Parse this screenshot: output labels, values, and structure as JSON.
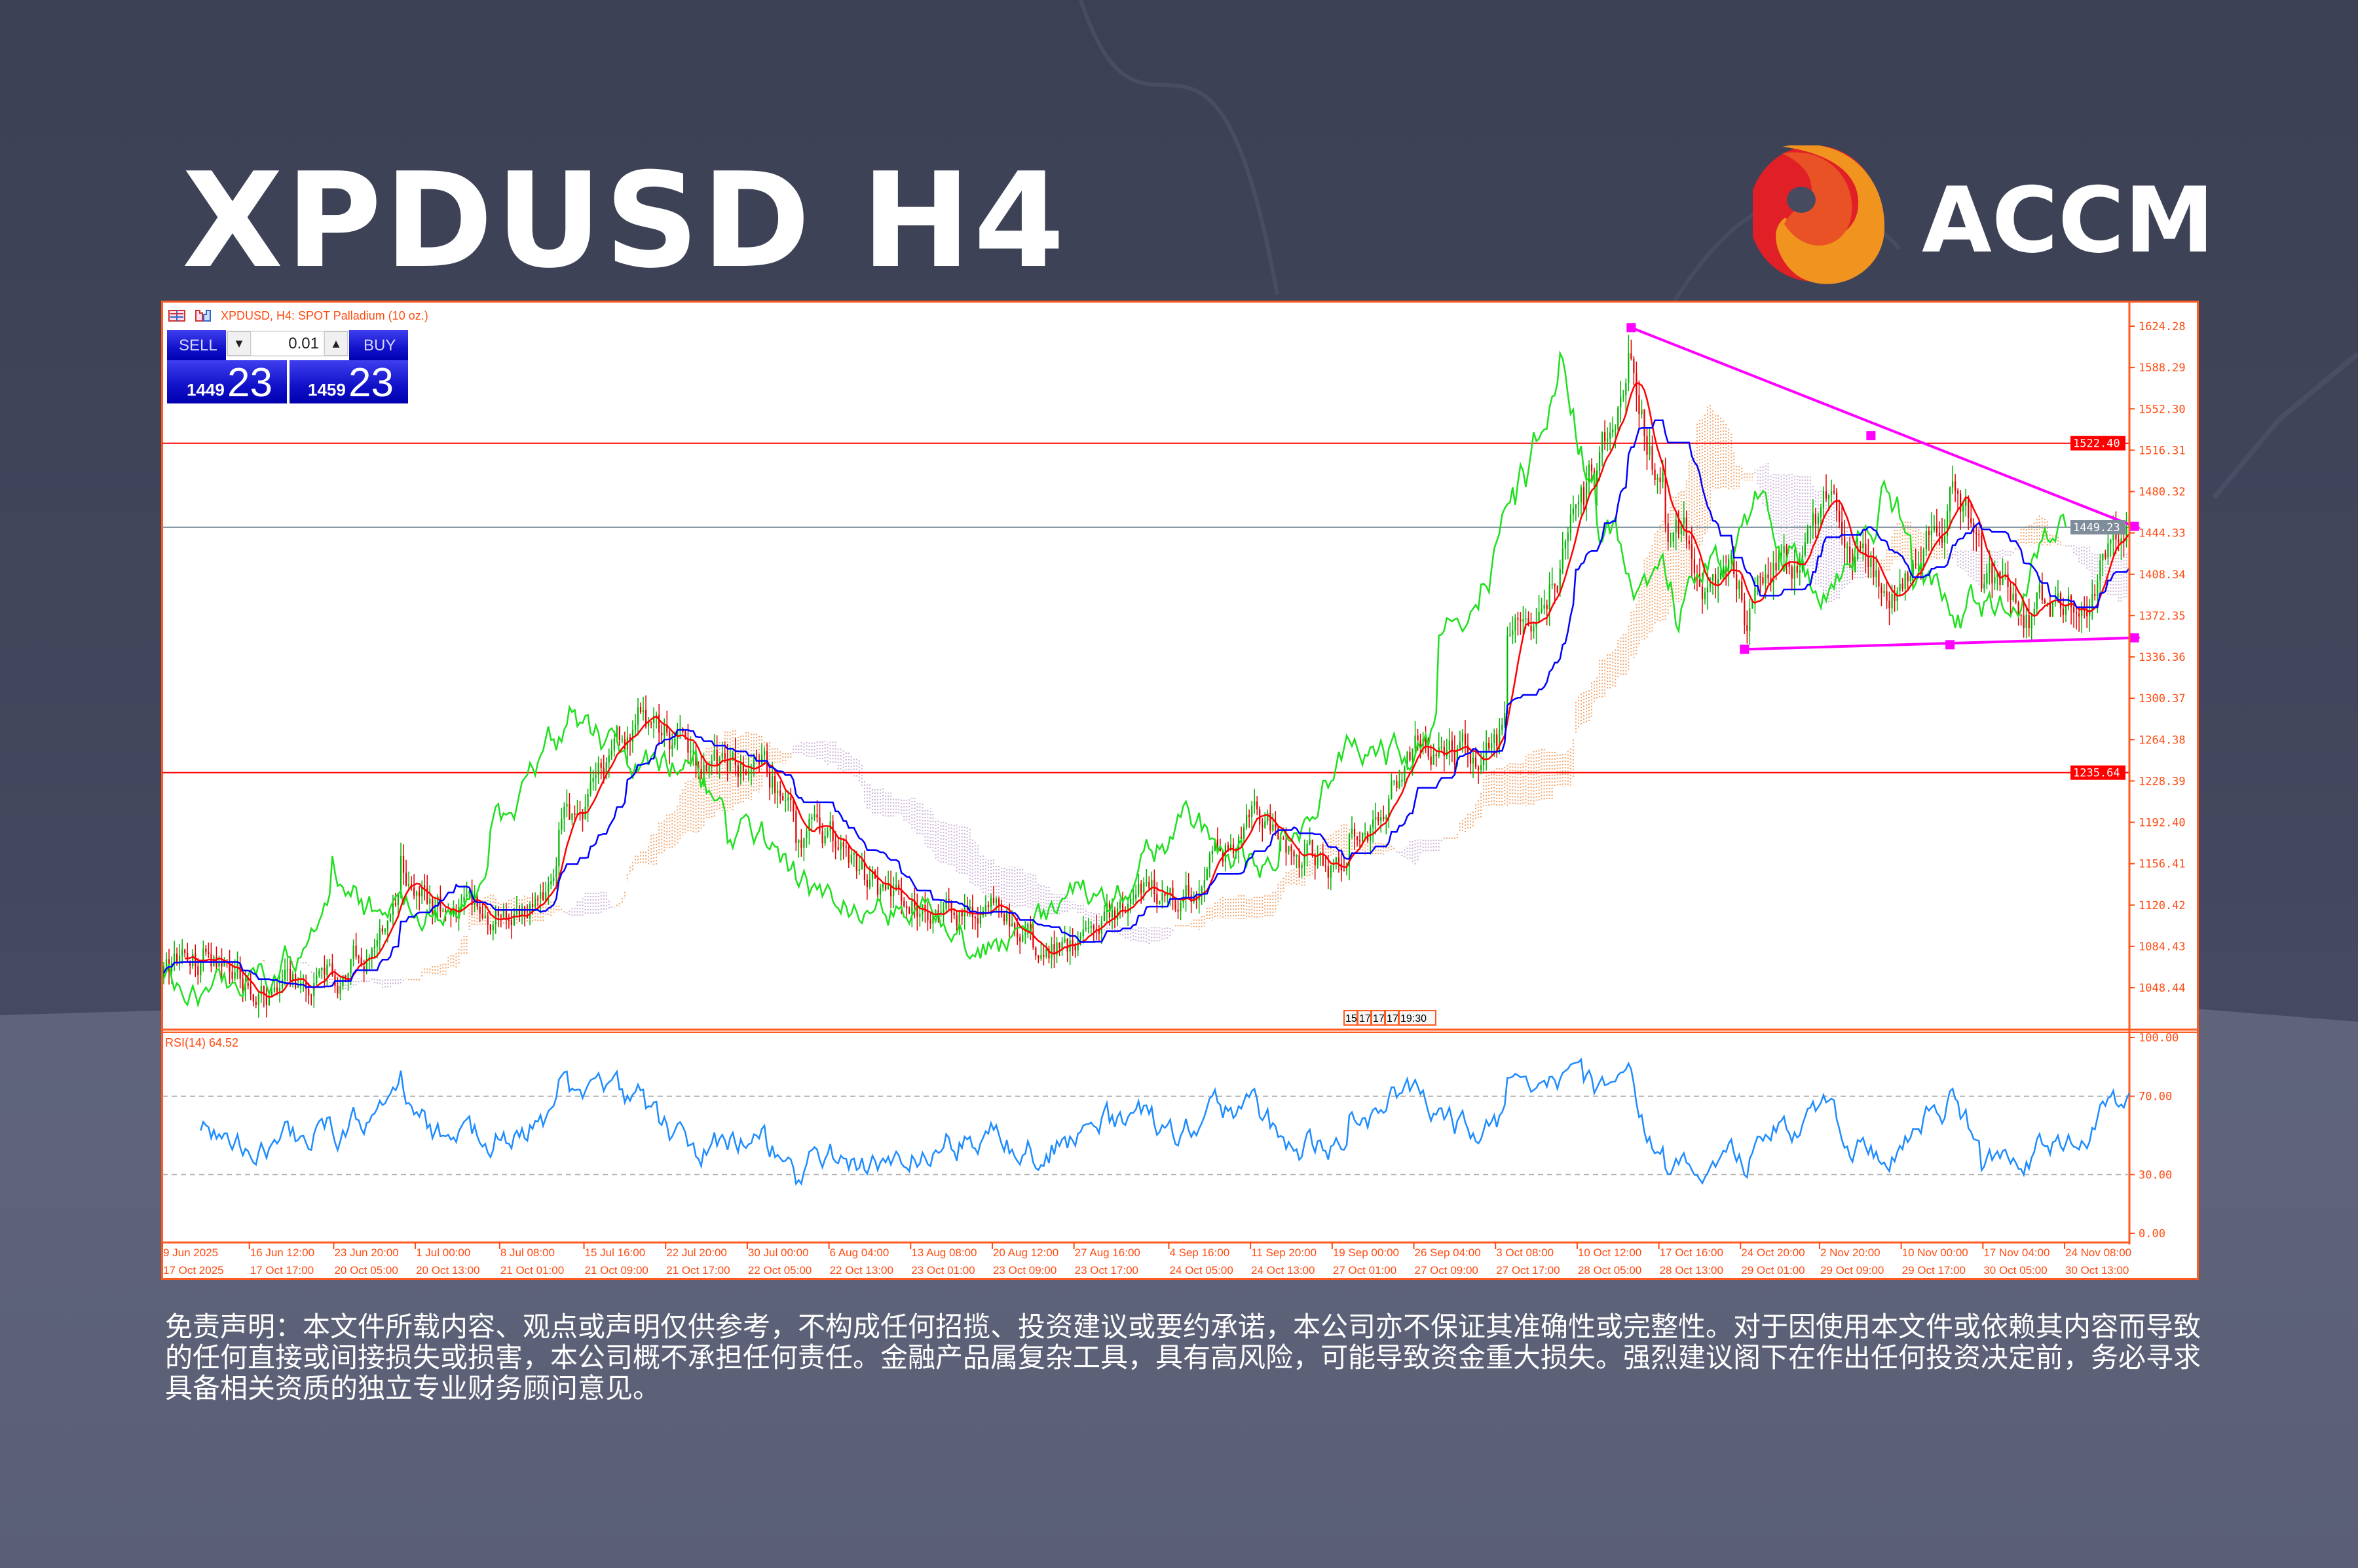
{
  "header": {
    "title": "XPDUSD H4",
    "brand": "ACCM"
  },
  "chart_window": {
    "symbol_line": "XPDUSD, H4:  SPOT Palladium (10 oz.)",
    "trade_panel": {
      "sell_label": "SELL",
      "buy_label": "BUY",
      "lot": "0.01",
      "sell_price_small": "1449",
      "sell_price_big": "23",
      "buy_price_small": "1459",
      "buy_price_big": "23"
    },
    "rsi_label": "RSI(14) 64.52",
    "time_markers": [
      "15",
      "17",
      "17",
      "17",
      "19:30"
    ]
  },
  "colors": {
    "up": "#00b400",
    "down": "#e00000",
    "chikou": "#1ee01e",
    "ma_red": "#ff0000",
    "kijun": "#0000ff",
    "cloud_up": "#f2a46a",
    "cloud_down": "#cbb2d6",
    "level_line": "#ff0000",
    "bid_line": "#8899a6",
    "trendline": "#ff00ff",
    "rsi": "#1e8cff",
    "axis": "#ff4a10",
    "frame": "#ff5a1f"
  },
  "chart_data": [
    {
      "type": "candlestick",
      "title": "XPDUSD, H4:  SPOT Palladium (10 oz.)",
      "ylim": [
        1030,
        1640
      ],
      "y_ticks": [
        "1624.28",
        "1588.29",
        "1552.30",
        "1516.31",
        "1480.32",
        "1444.33",
        "1408.34",
        "1372.35",
        "1336.36",
        "1300.37",
        "1264.38",
        "1228.39",
        "1192.40",
        "1156.41",
        "1120.42",
        "1084.43",
        "1048.44"
      ],
      "x_ticks_row1": [
        "9 Jun 2025",
        "16 Jun 12:00",
        "23 Jun 20:00",
        "1 Jul 00:00",
        "8 Jul 08:00",
        "15 Jul 16:00",
        "22 Jul 20:00",
        "30 Jul 00:00",
        "6 Aug 04:00",
        "13 Aug 08:00",
        "20 Aug 12:00",
        "27 Aug 16:00",
        "4 Sep 16:00",
        "11 Sep 20:00",
        "19 Sep 00:00",
        "26 Sep 04:00",
        "3 Oct 08:00",
        "10 Oct 12:00",
        "17 Oct 16:00",
        "24 Oct 20:00",
        "2 Nov 20:00",
        "10 Nov 00:00",
        "17 Nov 04:00",
        "24 Nov 08:00"
      ],
      "x_ticks_row2": [
        "17 Oct 2025",
        "17 Oct 17:00",
        "20 Oct 05:00",
        "20 Oct 13:00",
        "21 Oct 01:00",
        "21 Oct 09:00",
        "21 Oct 17:00",
        "22 Oct 05:00",
        "22 Oct 13:00",
        "23 Oct 01:00",
        "23 Oct 09:00",
        "23 Oct 17:00",
        "24 Oct 05:00",
        "24 Oct 13:00",
        "27 Oct 01:00",
        "27 Oct 09:00",
        "27 Oct 17:00",
        "28 Oct 05:00",
        "28 Oct 13:00",
        "29 Oct 01:00",
        "29 Oct 09:00",
        "29 Oct 17:00",
        "30 Oct 05:00",
        "30 Oct 13:00"
      ],
      "close_path": [
        [
          "2025-06-09T00:00",
          1057
        ],
        [
          "2025-06-11T12:00",
          1075
        ],
        [
          "2025-06-16T12:00",
          1044
        ],
        [
          "2025-06-20T00:00",
          1052
        ],
        [
          "2025-06-23T20:00",
          1057
        ],
        [
          "2025-06-27T00:00",
          1097
        ],
        [
          "2025-06-30T00:00",
          1136
        ],
        [
          "2025-07-02T00:00",
          1118
        ],
        [
          "2025-07-08T08:00",
          1110
        ],
        [
          "2025-07-11T00:00",
          1120
        ],
        [
          "2025-07-14T00:00",
          1175
        ],
        [
          "2025-07-15T16:00",
          1201
        ],
        [
          "2025-07-18T00:00",
          1254
        ],
        [
          "2025-07-21T00:00",
          1278
        ],
        [
          "2025-07-22T20:00",
          1267
        ],
        [
          "2025-07-25T00:00",
          1241
        ],
        [
          "2025-07-30T00:00",
          1241
        ],
        [
          "2025-08-01T00:00",
          1215
        ],
        [
          "2025-08-06T04:00",
          1175
        ],
        [
          "2025-08-08T12:00",
          1140
        ],
        [
          "2025-08-13T08:00",
          1123
        ],
        [
          "2025-08-18T00:00",
          1125
        ],
        [
          "2025-08-20T12:00",
          1110
        ],
        [
          "2025-08-25T00:00",
          1097
        ],
        [
          "2025-08-27T16:00",
          1090
        ],
        [
          "2025-09-01T00:00",
          1110
        ],
        [
          "2025-09-04T16:00",
          1136
        ],
        [
          "2025-09-08T00:00",
          1140
        ],
        [
          "2025-09-11T20:00",
          1195
        ],
        [
          "2025-09-15T00:00",
          1175
        ],
        [
          "2025-09-19T00:00",
          1149
        ],
        [
          "2025-09-23T00:00",
          1188
        ],
        [
          "2025-09-26T04:00",
          1260
        ],
        [
          "2025-09-30T00:00",
          1254
        ],
        [
          "2025-10-03T08:00",
          1254
        ],
        [
          "2025-10-06T12:00",
          1345
        ],
        [
          "2025-10-08T12:00",
          1411
        ],
        [
          "2025-10-10T12:00",
          1463
        ],
        [
          "2025-10-13T12:00",
          1489
        ],
        [
          "2025-10-14T16:00",
          1540
        ],
        [
          "2025-10-15T20:00",
          1607
        ],
        [
          "2025-10-17T16:00",
          1489
        ],
        [
          "2025-10-21T00:00",
          1437
        ],
        [
          "2025-10-23T00:00",
          1411
        ],
        [
          "2025-10-27T00:00",
          1372
        ],
        [
          "2025-10-29T00:00",
          1424
        ],
        [
          "2025-11-03T00:00",
          1444
        ],
        [
          "2025-11-06T00:00",
          1411
        ],
        [
          "2025-11-10T00:00",
          1385
        ],
        [
          "2025-11-13T00:00",
          1476
        ],
        [
          "2025-11-17T04:00",
          1398
        ],
        [
          "2025-11-20T00:00",
          1385
        ],
        [
          "2025-11-24T08:00",
          1385
        ],
        [
          "2025-11-26T00:00",
          1411
        ],
        [
          "2025-11-28T16:00",
          1449.23
        ]
      ],
      "indicators": [
        "Ichimoku",
        "Moving Average",
        "RSI(14)"
      ],
      "levels": [
        {
          "label": "1522.40",
          "value": 1522.4,
          "kind": "resistance"
        },
        {
          "label": "1449.23",
          "value": 1449.23,
          "kind": "bid"
        },
        {
          "label": "1235.64",
          "value": 1235.64,
          "kind": "support"
        }
      ],
      "trendlines": [
        {
          "from": [
            "2025-10-15T20:00",
            1623
          ],
          "to": [
            "2025-11-28T16:00",
            1450
          ],
          "mid": [
            "2025-11-06T00:00",
            1529
          ]
        },
        {
          "from": [
            "2025-10-27T00:00",
            1343
          ],
          "to": [
            "2025-11-28T16:00",
            1353
          ],
          "mid": [
            "2025-11-13T00:00",
            1347
          ]
        }
      ]
    },
    {
      "type": "line",
      "title": "RSI(14) 64.52",
      "ylim": [
        0,
        100
      ],
      "y_ticks": [
        "100.00",
        "70.00",
        "30.00",
        "0.00"
      ],
      "levels": [
        70,
        30
      ],
      "last_value": 64.52
    }
  ],
  "disclaimer": [
    "免责声明：本文件所载内容、观点或声明仅供参考，不构成任何招揽、投资建议或要约承诺，本公司亦不保证其准确性或完整性。对于因使用本文件或依赖其内容而导致",
    "的任何直接或间接损失或损害，本公司概不承担任何责任。金融产品属复杂工具，具有高风险，可能导致资金重大损失。强烈建议阁下在作出任何投资决定前，务必寻求",
    "具备相关资质的独立专业财务顾问意见。"
  ]
}
